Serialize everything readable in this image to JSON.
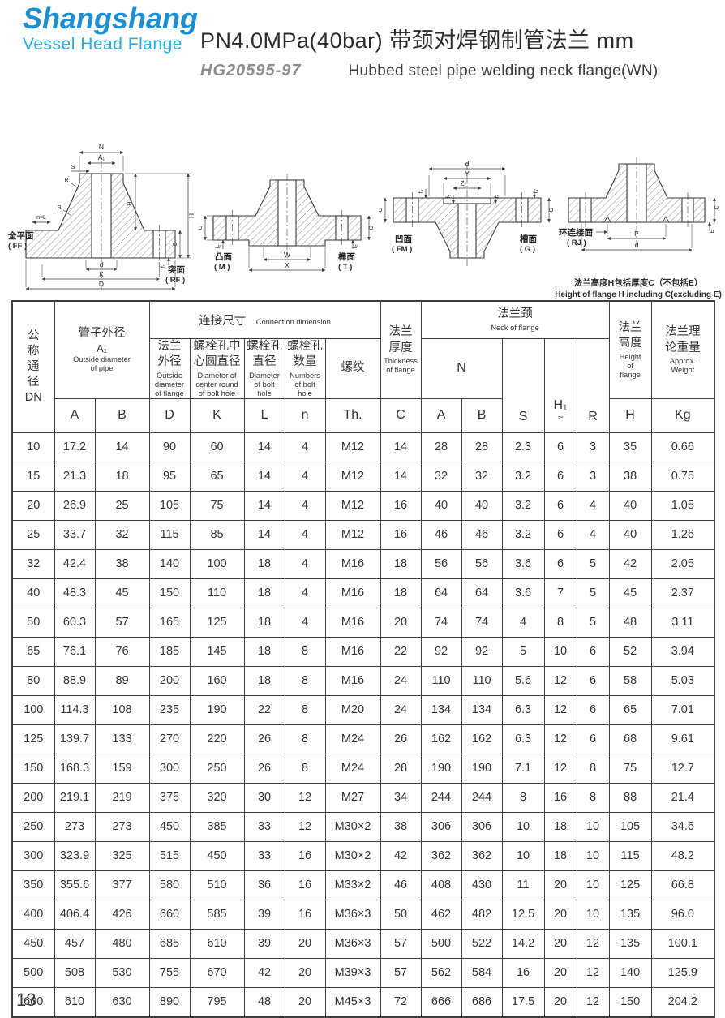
{
  "brand": {
    "name": "Shangshang",
    "tagline": "Vessel Head Flange",
    "name_color": "#1b8fd2",
    "tagline_color": "#29abe2"
  },
  "header": {
    "title": "PN4.0MPa(40bar) 带颈对焊钢制管法兰  mm",
    "standard": "HG20595-97",
    "subtitle_en": "Hubbed steel pipe welding neck flange(WN)"
  },
  "diagrams": [
    {
      "face_left": "全平面",
      "face_left_code": "( FF )",
      "face_right": "突面",
      "face_right_code": "( RF )",
      "dims": {
        "N": "N",
        "A1": "A₁",
        "S": "S",
        "R": "R",
        "nxL": "n×L",
        "H1": "H₁",
        "H": "H",
        "C": "C",
        "f1": "f₁",
        "d": "d",
        "K": "K",
        "D": "D"
      }
    },
    {
      "face_left": "凸面",
      "face_left_code": "( M )",
      "face_right": "榫面",
      "face_right_code": "( T )",
      "dims": {
        "W": "W",
        "X": "X",
        "C": "C",
        "f2": "f₂"
      }
    },
    {
      "face_left": "凹面",
      "face_left_code": "( FM )",
      "face_right": "槽面",
      "face_right_code": "( G )",
      "dims": {
        "d": "d",
        "Y": "Y",
        "Z": "Z",
        "C": "C",
        "f4": "f₄",
        "f5": "f₅"
      }
    },
    {
      "face_left": "环连接面",
      "face_left_code": "( RJ )",
      "dims": {
        "E": "E",
        "P": "P",
        "d": "d",
        "C": "C"
      },
      "note_zh": "法兰高度H包括厚度C（不包括E）",
      "note_en": "Height of flange H including C(excluding E)"
    }
  ],
  "table": {
    "dn": "公\n称\n通\n径\nDN",
    "pipe_od": {
      "zh": "管子外径",
      "sym": "A₁",
      "en": "Outside diameter\nof pipe"
    },
    "connection": {
      "zh": "连接尺寸",
      "en": "Connection dimension"
    },
    "flange_od": {
      "zh": "法兰\n外径",
      "en": "Outside\ndiameter\nof flange"
    },
    "bolt_circle": {
      "zh": "螺栓孔中\n心圆直径",
      "en": "Diameter of\ncenter round\nof bolt hole"
    },
    "bolt_dia": {
      "zh": "螺栓孔\n直径",
      "en": "Diameter\nof bolt\nhole"
    },
    "bolt_num": {
      "zh": "螺栓孔\n数量",
      "en": "Numbers\nof bolt\nhole"
    },
    "thread": {
      "zh": "螺纹"
    },
    "thickness": {
      "zh": "法兰\n厚度",
      "en": "Thickness\nof flange"
    },
    "neck": {
      "zh": "法兰颈",
      "en": "Neck of flange"
    },
    "neck_n": "N",
    "flange_height": {
      "zh": "法兰\n高度",
      "en": "Height\nof\nflange"
    },
    "weight": {
      "zh": "法兰理\n论重量",
      "en": "Approx.\nWeight"
    },
    "letters": {
      "a": "A",
      "b": "B",
      "d": "D",
      "k": "K",
      "l": "L",
      "n": "n",
      "th": "Th.",
      "c": "C",
      "neck_a": "A",
      "neck_b": "B",
      "s": "S",
      "h1": "H₁",
      "h1_sub": "≈",
      "r": "R",
      "h": "H",
      "kg": "Kg"
    },
    "rows": [
      [
        "10",
        "17.2",
        "14",
        "90",
        "60",
        "14",
        "4",
        "M12",
        "14",
        "28",
        "28",
        "2.3",
        "6",
        "3",
        "35",
        "0.66"
      ],
      [
        "15",
        "21.3",
        "18",
        "95",
        "65",
        "14",
        "4",
        "M12",
        "14",
        "32",
        "32",
        "3.2",
        "6",
        "3",
        "38",
        "0.75"
      ],
      [
        "20",
        "26.9",
        "25",
        "105",
        "75",
        "14",
        "4",
        "M12",
        "16",
        "40",
        "40",
        "3.2",
        "6",
        "4",
        "40",
        "1.05"
      ],
      [
        "25",
        "33.7",
        "32",
        "115",
        "85",
        "14",
        "4",
        "M12",
        "16",
        "46",
        "46",
        "3.2",
        "6",
        "4",
        "40",
        "1.26"
      ],
      [
        "32",
        "42.4",
        "38",
        "140",
        "100",
        "18",
        "4",
        "M16",
        "18",
        "56",
        "56",
        "3.6",
        "6",
        "5",
        "42",
        "2.05"
      ],
      [
        "40",
        "48.3",
        "45",
        "150",
        "110",
        "18",
        "4",
        "M16",
        "18",
        "64",
        "64",
        "3.6",
        "7",
        "5",
        "45",
        "2.37"
      ],
      [
        "50",
        "60.3",
        "57",
        "165",
        "125",
        "18",
        "4",
        "M16",
        "20",
        "74",
        "74",
        "4",
        "8",
        "5",
        "48",
        "3.11"
      ],
      [
        "65",
        "76.1",
        "76",
        "185",
        "145",
        "18",
        "8",
        "M16",
        "22",
        "92",
        "92",
        "5",
        "10",
        "6",
        "52",
        "3.94"
      ],
      [
        "80",
        "88.9",
        "89",
        "200",
        "160",
        "18",
        "8",
        "M16",
        "24",
        "110",
        "110",
        "5.6",
        "12",
        "6",
        "58",
        "5.03"
      ],
      [
        "100",
        "114.3",
        "108",
        "235",
        "190",
        "22",
        "8",
        "M20",
        "24",
        "134",
        "134",
        "6.3",
        "12",
        "6",
        "65",
        "7.01"
      ],
      [
        "125",
        "139.7",
        "133",
        "270",
        "220",
        "26",
        "8",
        "M24",
        "26",
        "162",
        "162",
        "6.3",
        "12",
        "6",
        "68",
        "9.61"
      ],
      [
        "150",
        "168.3",
        "159",
        "300",
        "250",
        "26",
        "8",
        "M24",
        "28",
        "190",
        "190",
        "7.1",
        "12",
        "8",
        "75",
        "12.7"
      ],
      [
        "200",
        "219.1",
        "219",
        "375",
        "320",
        "30",
        "12",
        "M27",
        "34",
        "244",
        "244",
        "8",
        "16",
        "8",
        "88",
        "21.4"
      ],
      [
        "250",
        "273",
        "273",
        "450",
        "385",
        "33",
        "12",
        "M30×2",
        "38",
        "306",
        "306",
        "10",
        "18",
        "10",
        "105",
        "34.6"
      ],
      [
        "300",
        "323.9",
        "325",
        "515",
        "450",
        "33",
        "16",
        "M30×2",
        "42",
        "362",
        "362",
        "10",
        "18",
        "10",
        "115",
        "48.2"
      ],
      [
        "350",
        "355.6",
        "377",
        "580",
        "510",
        "36",
        "16",
        "M33×2",
        "46",
        "408",
        "430",
        "11",
        "20",
        "10",
        "125",
        "66.8"
      ],
      [
        "400",
        "406.4",
        "426",
        "660",
        "585",
        "39",
        "16",
        "M36×3",
        "50",
        "462",
        "482",
        "12.5",
        "20",
        "10",
        "135",
        "96.0"
      ],
      [
        "450",
        "457",
        "480",
        "685",
        "610",
        "39",
        "20",
        "M36×3",
        "57",
        "500",
        "522",
        "14.2",
        "20",
        "12",
        "135",
        "100.1"
      ],
      [
        "500",
        "508",
        "530",
        "755",
        "670",
        "42",
        "20",
        "M39×3",
        "57",
        "562",
        "584",
        "16",
        "20",
        "12",
        "140",
        "125.9"
      ],
      [
        "600",
        "610",
        "630",
        "890",
        "795",
        "48",
        "20",
        "M45×3",
        "72",
        "666",
        "686",
        "17.5",
        "20",
        "12",
        "150",
        "204.2"
      ]
    ]
  },
  "page_number": "13"
}
